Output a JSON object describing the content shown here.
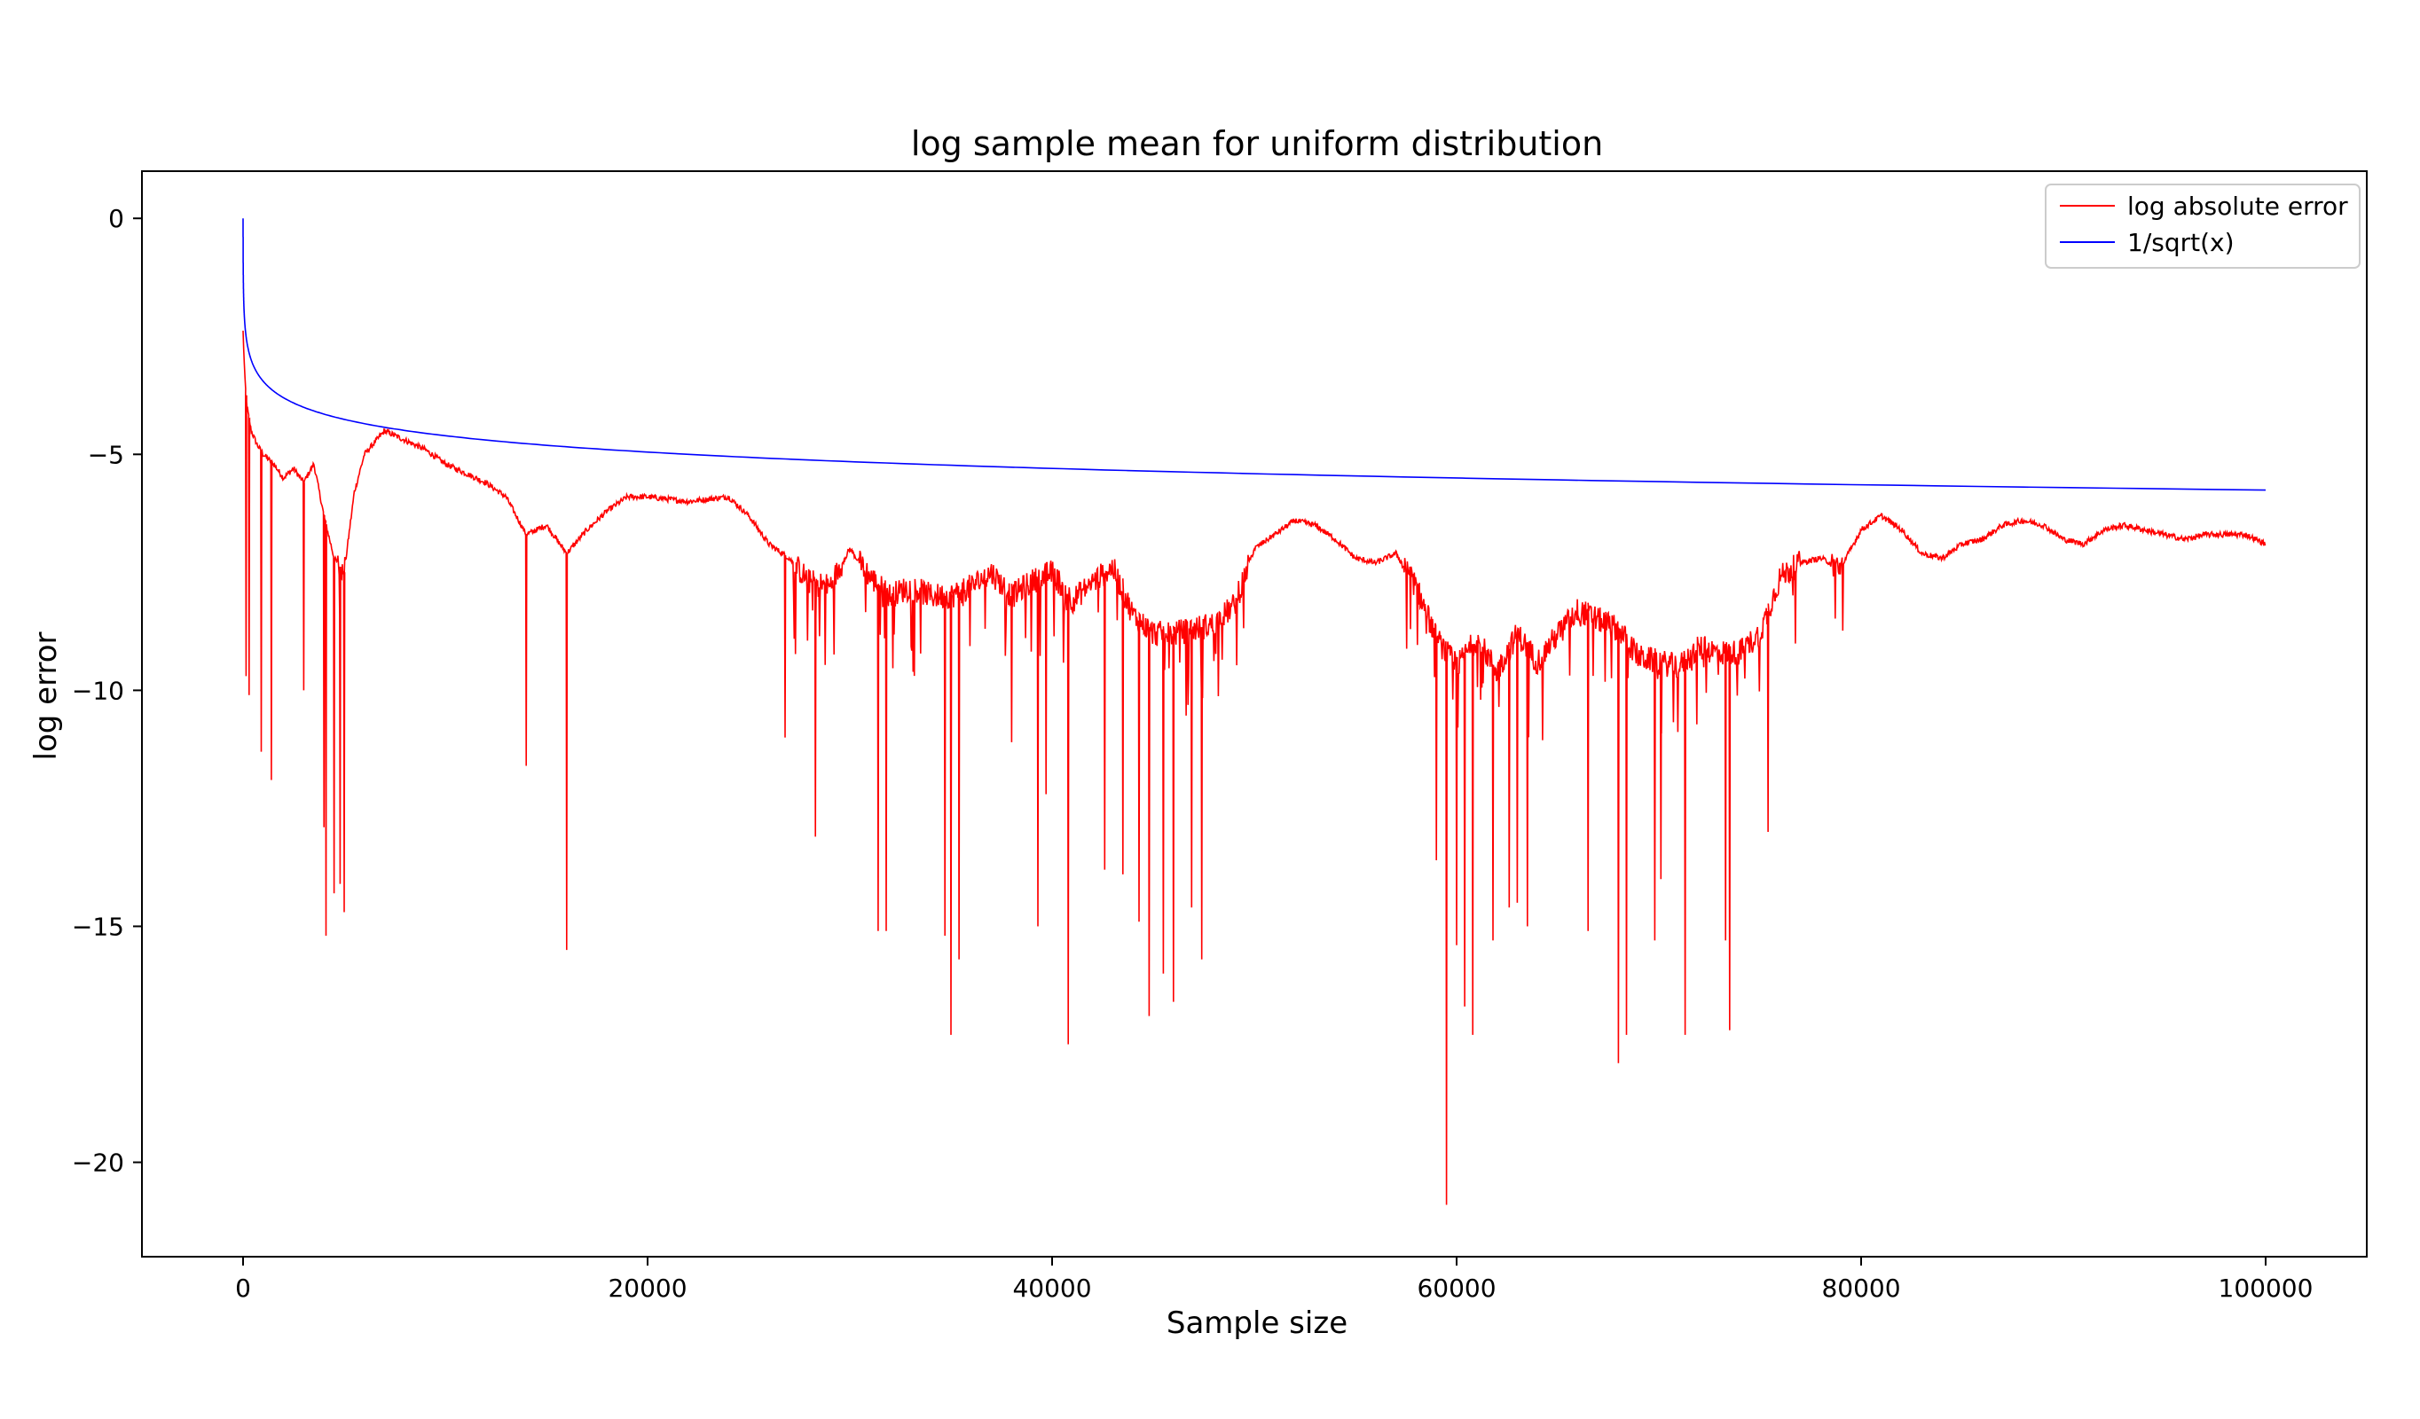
{
  "chart_data": {
    "type": "line",
    "title": "log sample mean for uniform distribution",
    "xlabel": "Sample size",
    "ylabel": "log error",
    "xlim": [
      -5000,
      105000
    ],
    "ylim": [
      -22,
      1
    ],
    "xticks": [
      0,
      20000,
      40000,
      60000,
      80000,
      100000
    ],
    "xtick_labels": [
      "0",
      "20000",
      "40000",
      "60000",
      "80000",
      "100000"
    ],
    "yticks": [
      0,
      -5,
      -10,
      -15,
      -20
    ],
    "ytick_labels": [
      "0",
      "−5",
      "−10",
      "−15",
      "−20"
    ],
    "grid": false,
    "legend_position": "top-right",
    "series": [
      {
        "name": "log absolute error",
        "color": "#ff0000",
        "x": [
          1,
          100,
          200,
          400,
          700,
          1000,
          1500,
          2000,
          2500,
          3000,
          3500,
          4000,
          4500,
          5000,
          5500,
          6000,
          7000,
          8000,
          9000,
          10000,
          11000,
          12000,
          13000,
          14000,
          15000,
          16000,
          17000,
          18000,
          19000,
          20000,
          22000,
          24000,
          25000,
          26000,
          27000,
          28000,
          29000,
          30000,
          31000,
          32000,
          33000,
          34000,
          35000,
          36000,
          37000,
          38000,
          39000,
          40000,
          41000,
          42000,
          43000,
          44000,
          45000,
          46000,
          47000,
          48000,
          49000,
          50000,
          51000,
          52000,
          53000,
          54000,
          55000,
          56000,
          57000,
          58000,
          59000,
          60000,
          61000,
          62000,
          63000,
          64000,
          65000,
          66000,
          67000,
          68000,
          69000,
          70000,
          71000,
          72000,
          73000,
          74000,
          75000,
          76000,
          77000,
          78000,
          79000,
          80000,
          81000,
          82000,
          83000,
          84000,
          85000,
          86000,
          87000,
          88000,
          89000,
          90000,
          91000,
          92000,
          93000,
          94000,
          95000,
          96000,
          97000,
          98000,
          99000,
          100000
        ],
        "y": [
          -2.4,
          -3.5,
          -4.0,
          -4.5,
          -4.8,
          -5.0,
          -5.2,
          -5.5,
          -5.3,
          -5.6,
          -5.2,
          -6.3,
          -7.2,
          -7.5,
          -5.8,
          -5.0,
          -4.5,
          -4.7,
          -4.9,
          -5.2,
          -5.4,
          -5.6,
          -5.9,
          -6.7,
          -6.5,
          -7.1,
          -6.6,
          -6.2,
          -5.9,
          -5.9,
          -6.0,
          -5.9,
          -6.3,
          -6.9,
          -7.2,
          -7.7,
          -7.8,
          -7.0,
          -7.6,
          -8.0,
          -7.8,
          -8.0,
          -8.0,
          -7.8,
          -7.5,
          -8.0,
          -7.7,
          -7.5,
          -8.1,
          -7.7,
          -7.4,
          -8.4,
          -8.8,
          -8.8,
          -8.7,
          -8.6,
          -8.2,
          -7.0,
          -6.7,
          -6.4,
          -6.5,
          -6.8,
          -7.2,
          -7.3,
          -7.1,
          -7.8,
          -8.9,
          -9.5,
          -8.9,
          -9.6,
          -8.8,
          -9.4,
          -8.8,
          -8.3,
          -8.5,
          -8.7,
          -9.3,
          -9.4,
          -9.5,
          -9.1,
          -9.2,
          -9.2,
          -8.8,
          -7.6,
          -7.3,
          -7.2,
          -7.4,
          -6.6,
          -6.3,
          -6.6,
          -7.1,
          -7.2,
          -6.9,
          -6.8,
          -6.5,
          -6.4,
          -6.5,
          -6.8,
          -6.9,
          -6.6,
          -6.5,
          -6.6,
          -6.7,
          -6.8,
          -6.7,
          -6.7,
          -6.7,
          -6.9
        ],
        "spikes": [
          [
            150,
            -9.7
          ],
          [
            300,
            -10.1
          ],
          [
            900,
            -11.3
          ],
          [
            1400,
            -11.9
          ],
          [
            3000,
            -10.0
          ],
          [
            4000,
            -12.9
          ],
          [
            4100,
            -15.2
          ],
          [
            4500,
            -14.3
          ],
          [
            4800,
            -14.1
          ],
          [
            5000,
            -14.7
          ],
          [
            14000,
            -11.6
          ],
          [
            16000,
            -15.5
          ],
          [
            26800,
            -11.0
          ],
          [
            28300,
            -13.1
          ],
          [
            31400,
            -15.1
          ],
          [
            31800,
            -15.1
          ],
          [
            34700,
            -15.2
          ],
          [
            35000,
            -17.3
          ],
          [
            35400,
            -15.7
          ],
          [
            38000,
            -11.1
          ],
          [
            39300,
            -15.0
          ],
          [
            39700,
            -12.2
          ],
          [
            40800,
            -17.5
          ],
          [
            42600,
            -13.8
          ],
          [
            43500,
            -13.9
          ],
          [
            44300,
            -14.9
          ],
          [
            44800,
            -16.9
          ],
          [
            45500,
            -16.0
          ],
          [
            46000,
            -16.6
          ],
          [
            46900,
            -14.6
          ],
          [
            47400,
            -15.7
          ],
          [
            59000,
            -13.6
          ],
          [
            59500,
            -20.9
          ],
          [
            60000,
            -15.4
          ],
          [
            60400,
            -16.7
          ],
          [
            60800,
            -17.3
          ],
          [
            61800,
            -15.3
          ],
          [
            62600,
            -14.6
          ],
          [
            63000,
            -14.5
          ],
          [
            63500,
            -15.0
          ],
          [
            66500,
            -15.1
          ],
          [
            68000,
            -17.9
          ],
          [
            68400,
            -17.3
          ],
          [
            69800,
            -15.3
          ],
          [
            70100,
            -14.0
          ],
          [
            71300,
            -17.3
          ],
          [
            73300,
            -15.3
          ],
          [
            73500,
            -17.2
          ],
          [
            75400,
            -13.0
          ]
        ]
      },
      {
        "name": "1/sqrt(x)",
        "color": "#0000ff",
        "formula": "log(1/sqrt(x)) = -0.5*ln(x)"
      }
    ]
  }
}
